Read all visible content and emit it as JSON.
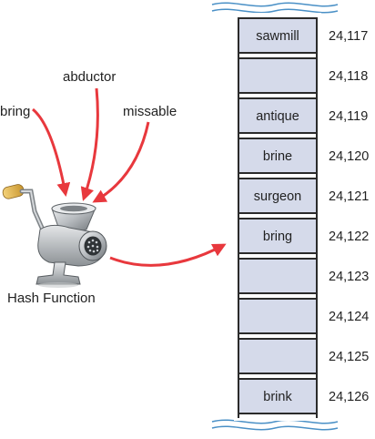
{
  "inputs": [
    "bring",
    "abductor",
    "missable"
  ],
  "hash_function_label": "Hash Function",
  "table": {
    "rows": [
      {
        "address": "24,117",
        "value": "sawmill"
      },
      {
        "address": "24,118",
        "value": ""
      },
      {
        "address": "24,119",
        "value": "antique"
      },
      {
        "address": "24,120",
        "value": "brine"
      },
      {
        "address": "24,121",
        "value": "surgeon"
      },
      {
        "address": "24,122",
        "value": "bring"
      },
      {
        "address": "24,123",
        "value": ""
      },
      {
        "address": "24,124",
        "value": ""
      },
      {
        "address": "24,125",
        "value": ""
      },
      {
        "address": "24,126",
        "value": "brink"
      }
    ],
    "output_row": 5
  },
  "colors": {
    "arrow": "#e8383d",
    "cell_fill": "#d5daea",
    "cell_border": "#2b2b2b",
    "break_line": "#4a90c6"
  },
  "icons": {
    "hash_function": "meat-grinder-icon"
  }
}
